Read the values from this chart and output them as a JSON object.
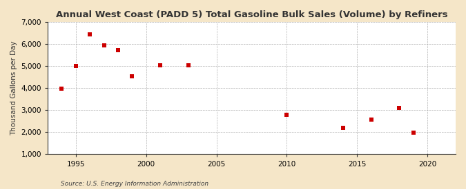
{
  "title": "Annual West Coast (PADD 5) Total Gasoline Bulk Sales (Volume) by Refiners",
  "ylabel": "Thousand Gallons per Day",
  "source": "Source: U.S. Energy Information Administration",
  "figure_bg_color": "#f5e6c8",
  "plot_bg_color": "#ffffff",
  "marker_color": "#cc0000",
  "marker": "s",
  "marker_size": 4,
  "xlim": [
    1993,
    2022
  ],
  "ylim": [
    1000,
    7000
  ],
  "yticks": [
    1000,
    2000,
    3000,
    4000,
    5000,
    6000,
    7000
  ],
  "xticks": [
    1995,
    2000,
    2005,
    2010,
    2015,
    2020
  ],
  "x": [
    1994,
    1995,
    1996,
    1997,
    1998,
    1999,
    2001,
    2003,
    2010,
    2014,
    2016,
    2018,
    2019
  ],
  "y": [
    3980,
    5000,
    6450,
    5950,
    5730,
    4550,
    5050,
    5020,
    2800,
    2200,
    2560,
    3100,
    1975
  ],
  "title_fontsize": 9.5,
  "label_fontsize": 7.5,
  "tick_fontsize": 7.5,
  "source_fontsize": 6.5
}
